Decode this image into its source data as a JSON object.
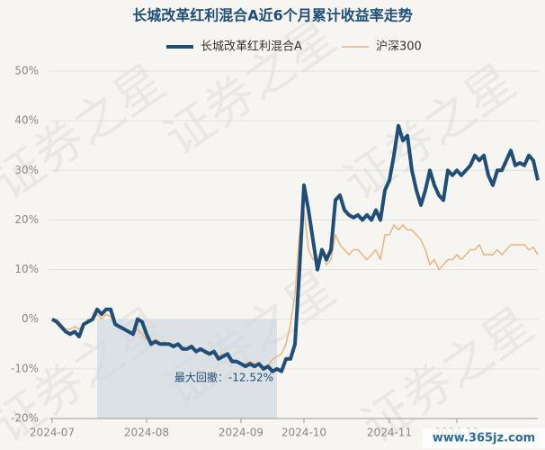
{
  "chart_data": {
    "type": "line",
    "title": "长城改革红利混合A近6个月累计收益率走势",
    "watermark": "证券之星",
    "site": "www.365jz.com",
    "categories": [
      "2024-07",
      null,
      null,
      null,
      null,
      null,
      null,
      null,
      null,
      null,
      null,
      null,
      null,
      null,
      null,
      null,
      null,
      null,
      null,
      null,
      null,
      "2024-08",
      null,
      null,
      null,
      null,
      null,
      null,
      null,
      null,
      null,
      null,
      null,
      null,
      null,
      null,
      null,
      null,
      null,
      null,
      null,
      null,
      "2024-09",
      null,
      null,
      null,
      null,
      null,
      null,
      null,
      null,
      null,
      null,
      null,
      null,
      null,
      "2024-10",
      null,
      null,
      null,
      null,
      null,
      null,
      null,
      null,
      null,
      null,
      null,
      null,
      null,
      null,
      null,
      null,
      null,
      null,
      "2024-11",
      null,
      null,
      null,
      null,
      null,
      null,
      null,
      null,
      null,
      null,
      null,
      null,
      null,
      null,
      "2024-12",
      null,
      null,
      null,
      null,
      null,
      null,
      null,
      null,
      null,
      null,
      null,
      null,
      null,
      null,
      null,
      null,
      null,
      null
    ],
    "series": [
      {
        "name": "长城改革红利混合A",
        "color": "#1f4e79",
        "width": 4,
        "values": [
          0,
          -0.5,
          -1.5,
          -2.5,
          -3,
          -2.5,
          -3.5,
          -1,
          -0.5,
          0,
          2,
          1,
          2,
          2,
          -1,
          -1.5,
          -2,
          -2.5,
          -3,
          0,
          -0.5,
          -3,
          -5,
          -4.5,
          -5,
          -5,
          -5,
          -5.5,
          -5,
          -6,
          -6,
          -5.5,
          -6.5,
          -6,
          -6.5,
          -7,
          -6.5,
          -8,
          -7.5,
          -7,
          -8.5,
          -8.5,
          -9,
          -9.5,
          -9,
          -9.5,
          -9,
          -10,
          -9.5,
          -10.5,
          -10,
          -10.5,
          -8,
          -8,
          -5,
          10,
          27,
          22,
          16,
          10,
          14,
          12,
          14,
          24,
          25,
          22,
          21,
          20.5,
          21,
          20,
          21,
          20,
          22,
          20,
          26,
          28,
          33,
          39,
          36,
          37,
          30,
          26,
          23,
          26,
          30,
          27,
          25,
          24,
          30,
          29,
          30,
          29,
          30,
          31,
          33,
          32,
          33,
          29,
          27,
          30,
          30,
          32,
          34,
          31,
          31.5,
          31,
          33,
          32,
          28
        ]
      },
      {
        "name": "沪深300",
        "color": "#f0b27a",
        "width": 1.5,
        "values": [
          0,
          0,
          -1,
          -2,
          -2,
          -1.5,
          -2,
          -1,
          0,
          0,
          1,
          0,
          1,
          0.5,
          -1,
          -1.5,
          -2,
          -2.5,
          -3,
          -2,
          -3,
          -4,
          -4.5,
          -4,
          -5,
          -4.5,
          -5,
          -5,
          -5,
          -5.5,
          -6,
          -6,
          -6.5,
          -6,
          -7,
          -7,
          -6.5,
          -7.5,
          -7,
          -7,
          -8,
          -8.5,
          -9,
          -9,
          -8.5,
          -9,
          -9,
          -9.5,
          -9.5,
          -8,
          -7.5,
          -7,
          -5,
          -1,
          5,
          17,
          22,
          14,
          12,
          12,
          14,
          11,
          12,
          17,
          15,
          14,
          13,
          14,
          14,
          13,
          12,
          13,
          14,
          12,
          17,
          17,
          19,
          18,
          19,
          18,
          18,
          17,
          16,
          14,
          11,
          12,
          10,
          11,
          12,
          12,
          13,
          12,
          13,
          14,
          14,
          15,
          13,
          13,
          13,
          14,
          13,
          14,
          15,
          15,
          15,
          15,
          14,
          14.5,
          13
        ]
      }
    ],
    "drawdown": {
      "from": 10,
      "to": 50,
      "label": "最大回撤：-12.52%"
    },
    "ylim": [
      -20,
      50
    ],
    "yticks": [
      {
        "value": -20,
        "label": "-20%"
      },
      {
        "value": -10,
        "label": "-10%"
      },
      {
        "value": 0,
        "label": "0%"
      },
      {
        "value": 10,
        "label": "10%"
      },
      {
        "value": 20,
        "label": "20%"
      },
      {
        "value": 30,
        "label": "30%"
      },
      {
        "value": 40,
        "label": "40%"
      },
      {
        "value": 50,
        "label": "50%"
      }
    ],
    "grid": true
  }
}
